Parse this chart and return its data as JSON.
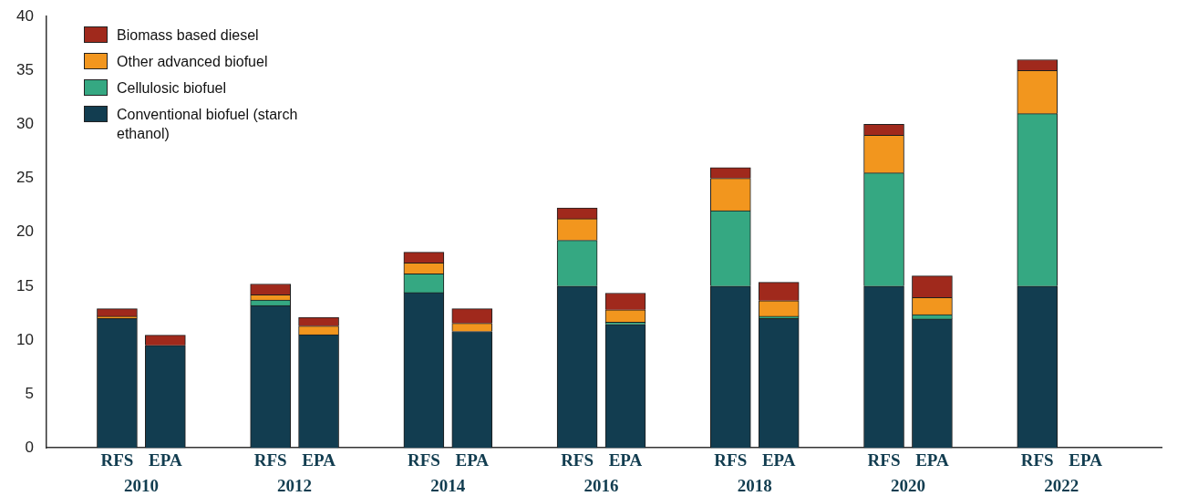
{
  "chart_data": {
    "type": "bar",
    "stacked": true,
    "categories": [
      "RFS",
      "EPA",
      "RFS",
      "EPA",
      "RFS",
      "EPA",
      "RFS",
      "EPA",
      "RFS",
      "EPA",
      "RFS",
      "EPA",
      "RFS",
      "EPA"
    ],
    "series": [
      {
        "name": "Conventional biofuel (starch ethanol)",
        "color": "#123d50",
        "values": [
          12.0,
          9.5,
          13.2,
          10.5,
          14.4,
          10.8,
          15.0,
          11.45,
          15.0,
          12.0,
          15.0,
          11.95,
          15.0,
          null
        ]
      },
      {
        "name": "Cellulosic biofuel",
        "color": "#35a882",
        "values": [
          0,
          0,
          0.5,
          0,
          1.75,
          0,
          4.25,
          0.2,
          7.0,
          0.2,
          10.5,
          0.4,
          16.0,
          null
        ]
      },
      {
        "name": "Other advanced biofuel",
        "color": "#f2961e",
        "values": [
          0.2,
          0,
          0.5,
          0.8,
          1.0,
          0.75,
          2.0,
          1.15,
          3.0,
          1.45,
          3.5,
          1.6,
          4.0,
          null
        ]
      },
      {
        "name": "Biomass based diesel",
        "color": "#a0291c",
        "values": [
          0.7,
          0.95,
          1.0,
          0.8,
          1.0,
          1.35,
          1.0,
          1.55,
          1.0,
          1.7,
          1.0,
          2.0,
          1.0,
          null
        ]
      }
    ],
    "annotations": [
      "2010",
      "2012",
      "2014",
      "2016",
      "2018",
      "2020",
      "2022"
    ],
    "ylim": [
      0,
      40
    ],
    "yticks": [
      0,
      5,
      10,
      15,
      20,
      25,
      30,
      35,
      40
    ],
    "grid": false,
    "legend": "top left"
  }
}
